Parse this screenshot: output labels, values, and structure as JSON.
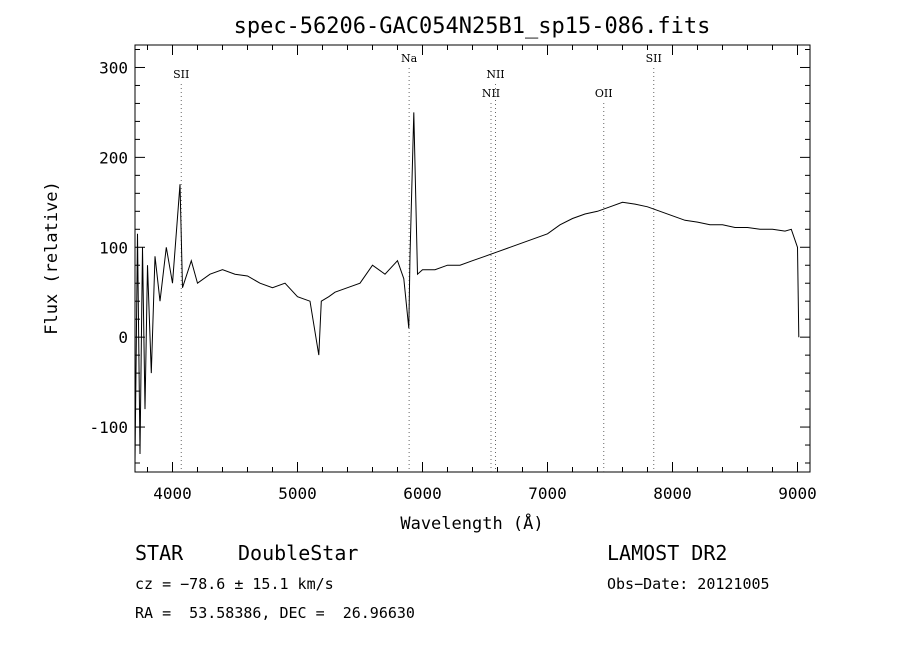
{
  "chart_data": {
    "type": "line",
    "title": "spec-56206-GAC054N25B1_sp15-086.fits",
    "xlabel": "Wavelength (Å)",
    "ylabel": "Flux (relative)",
    "xlim": [
      3700,
      9100
    ],
    "ylim": [
      -150,
      325
    ],
    "xticks": [
      4000,
      5000,
      6000,
      7000,
      8000,
      9000
    ],
    "yticks": [
      -100,
      0,
      100,
      200,
      300
    ],
    "grid": false,
    "line_color": "#000000",
    "lines": [
      {
        "label": "SII",
        "x": 4070,
        "label_row": 1
      },
      {
        "label": "Na",
        "x": 5893,
        "label_row": 0
      },
      {
        "label": "NII",
        "x": 6548,
        "label_row": 2
      },
      {
        "label": "NII",
        "x": 6584,
        "label_row": 1
      },
      {
        "label": "OII",
        "x": 7450,
        "label_row": 2
      },
      {
        "label": "SII",
        "x": 7850,
        "label_row": 0
      }
    ],
    "series": [
      {
        "x": [
          3700,
          3720,
          3740,
          3760,
          3780,
          3800,
          3830,
          3860,
          3900,
          3950,
          4000,
          4060,
          4080,
          4150,
          4200,
          4300,
          4400,
          4500,
          4600,
          4700,
          4800,
          4900,
          5000,
          5100,
          5170,
          5190,
          5250,
          5300,
          5400,
          5500,
          5600,
          5700,
          5800,
          5850,
          5890,
          5900,
          5930,
          5960,
          6000,
          6100,
          6200,
          6300,
          6400,
          6500,
          6600,
          6700,
          6800,
          6900,
          7000,
          7100,
          7200,
          7300,
          7400,
          7500,
          7600,
          7700,
          7800,
          7900,
          8000,
          8100,
          8200,
          8300,
          8400,
          8500,
          8600,
          8700,
          8800,
          8900,
          8950,
          9000,
          9010
        ],
        "y": [
          -140,
          115,
          -130,
          100,
          -80,
          80,
          -40,
          90,
          40,
          100,
          60,
          170,
          55,
          85,
          60,
          70,
          75,
          70,
          68,
          60,
          55,
          60,
          45,
          40,
          -20,
          40,
          45,
          50,
          55,
          60,
          80,
          70,
          85,
          65,
          10,
          90,
          250,
          70,
          75,
          75,
          80,
          80,
          85,
          90,
          95,
          100,
          105,
          110,
          115,
          125,
          132,
          137,
          140,
          145,
          150,
          148,
          145,
          140,
          135,
          130,
          128,
          125,
          125,
          122,
          122,
          120,
          120,
          118,
          120,
          100,
          0
        ]
      }
    ]
  },
  "info": {
    "object_type": "STAR",
    "subclass": "DoubleStar",
    "survey": "LAMOST DR2",
    "cz": "cz = −78.6 ± 15.1 km/s",
    "obs_date": "Obs−Date: 20121005",
    "coords": "RA =  53.58386, DEC =  26.96630"
  }
}
